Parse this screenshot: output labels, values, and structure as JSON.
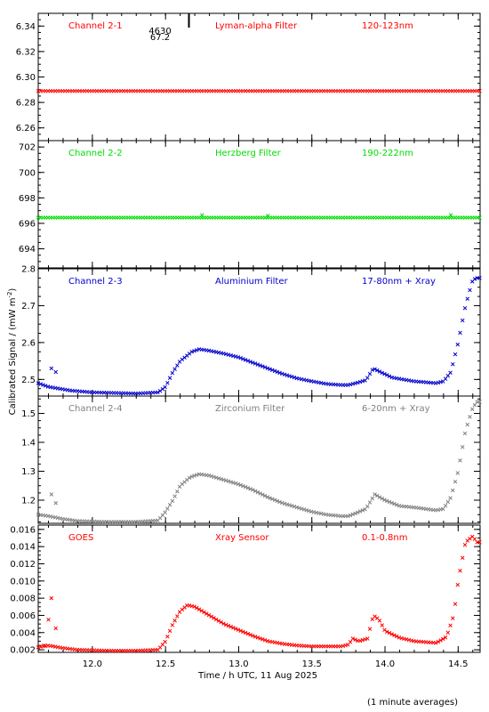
{
  "figure": {
    "ylabel_prefix": "Calibrated Signal / (mW m",
    "ylabel_sup": "-2",
    "ylabel_suffix": ")",
    "xlabel": "Time / h UTC, 11 Aug 2025",
    "footnote": "(1 minute averages)",
    "top_annotation": [
      "4630",
      "67.2"
    ]
  },
  "chart_data": [
    {
      "type": "scatter",
      "channel": "Channel 2-1",
      "filter": "Lyman-alpha Filter",
      "band": "120-123nm",
      "color": "#ff0000",
      "ylim": [
        6.25,
        6.35
      ],
      "yticks": [
        6.26,
        6.28,
        6.3,
        6.32,
        6.34
      ],
      "ytick_labels": [
        "6.26",
        "6.28",
        "6.30",
        "6.32",
        "6.34"
      ],
      "profile": [
        [
          11.63,
          6.289
        ],
        [
          14.63,
          6.289
        ]
      ],
      "bumps": []
    },
    {
      "type": "scatter",
      "channel": "Channel 2-2",
      "filter": "Herzberg Filter",
      "band": "190-222nm",
      "color": "#00dd00",
      "ylim": [
        692.5,
        702.5
      ],
      "yticks": [
        694,
        696,
        698,
        700,
        702
      ],
      "ytick_labels": [
        "694",
        "696",
        "698",
        "700",
        "702"
      ],
      "profile": [
        [
          11.63,
          696.45
        ],
        [
          14.63,
          696.45
        ]
      ],
      "bumps": [
        [
          12.75,
          696.65
        ],
        [
          13.2,
          696.6
        ],
        [
          14.45,
          696.65
        ]
      ]
    },
    {
      "type": "scatter",
      "channel": "Channel 2-3",
      "filter": "Aluminium Filter",
      "band": "17-80nm + Xray",
      "color": "#0000cc",
      "ylim": [
        2.455,
        2.8
      ],
      "yticks": [
        2.5,
        2.6,
        2.7,
        2.8
      ],
      "ytick_labels": [
        "2.5",
        "2.6",
        "2.7",
        "2.8"
      ],
      "profile": [
        [
          11.63,
          2.49
        ],
        [
          11.7,
          2.48
        ],
        [
          11.85,
          2.47
        ],
        [
          12.0,
          2.465
        ],
        [
          12.3,
          2.462
        ],
        [
          12.45,
          2.465
        ],
        [
          12.5,
          2.48
        ],
        [
          12.55,
          2.52
        ],
        [
          12.6,
          2.55
        ],
        [
          12.68,
          2.575
        ],
        [
          12.73,
          2.582
        ],
        [
          12.8,
          2.578
        ],
        [
          12.9,
          2.57
        ],
        [
          13.0,
          2.56
        ],
        [
          13.1,
          2.545
        ],
        [
          13.2,
          2.53
        ],
        [
          13.3,
          2.515
        ],
        [
          13.4,
          2.503
        ],
        [
          13.5,
          2.495
        ],
        [
          13.6,
          2.488
        ],
        [
          13.7,
          2.485
        ],
        [
          13.75,
          2.485
        ],
        [
          13.8,
          2.49
        ],
        [
          13.87,
          2.498
        ],
        [
          13.92,
          2.53
        ],
        [
          13.97,
          2.52
        ],
        [
          14.05,
          2.505
        ],
        [
          14.2,
          2.495
        ],
        [
          14.35,
          2.49
        ],
        [
          14.4,
          2.495
        ],
        [
          14.45,
          2.52
        ],
        [
          14.5,
          2.6
        ],
        [
          14.55,
          2.7
        ],
        [
          14.6,
          2.77
        ],
        [
          14.63,
          2.775
        ]
      ],
      "bumps": [
        [
          11.72,
          2.53
        ],
        [
          11.75,
          2.52
        ]
      ]
    },
    {
      "type": "scatter",
      "channel": "Channel 2-4",
      "filter": "Zirconium Filter",
      "band": "6-20nm + Xray",
      "color": "#808080",
      "ylim": [
        1.12,
        1.56
      ],
      "yticks": [
        1.2,
        1.3,
        1.4,
        1.5
      ],
      "ytick_labels": [
        "1.2",
        "1.3",
        "1.4",
        "1.5"
      ],
      "profile": [
        [
          11.63,
          1.15
        ],
        [
          11.7,
          1.145
        ],
        [
          11.8,
          1.135
        ],
        [
          11.9,
          1.128
        ],
        [
          12.1,
          1.125
        ],
        [
          12.3,
          1.125
        ],
        [
          12.45,
          1.13
        ],
        [
          12.5,
          1.16
        ],
        [
          12.55,
          1.2
        ],
        [
          12.6,
          1.25
        ],
        [
          12.67,
          1.28
        ],
        [
          12.73,
          1.29
        ],
        [
          12.8,
          1.285
        ],
        [
          12.9,
          1.27
        ],
        [
          13.0,
          1.255
        ],
        [
          13.1,
          1.235
        ],
        [
          13.2,
          1.21
        ],
        [
          13.3,
          1.19
        ],
        [
          13.4,
          1.175
        ],
        [
          13.5,
          1.16
        ],
        [
          13.6,
          1.15
        ],
        [
          13.7,
          1.145
        ],
        [
          13.75,
          1.145
        ],
        [
          13.8,
          1.155
        ],
        [
          13.87,
          1.17
        ],
        [
          13.93,
          1.22
        ],
        [
          14.0,
          1.2
        ],
        [
          14.1,
          1.18
        ],
        [
          14.2,
          1.175
        ],
        [
          14.35,
          1.165
        ],
        [
          14.4,
          1.17
        ],
        [
          14.45,
          1.21
        ],
        [
          14.5,
          1.3
        ],
        [
          14.55,
          1.44
        ],
        [
          14.6,
          1.52
        ],
        [
          14.63,
          1.54
        ]
      ],
      "bumps": [
        [
          11.72,
          1.22
        ],
        [
          11.75,
          1.19
        ]
      ]
    },
    {
      "type": "scatter",
      "channel": "GOES",
      "filter": "Xray Sensor",
      "band": "0.1-0.8nm",
      "color": "#ff0000",
      "ylim": [
        0.0017,
        0.0165
      ],
      "yticks": [
        0.002,
        0.004,
        0.006,
        0.008,
        0.01,
        0.012,
        0.014,
        0.016
      ],
      "ytick_labels": [
        "0.002",
        "0.004",
        "0.006",
        "0.008",
        "0.010",
        "0.012",
        "0.014",
        "0.016"
      ],
      "profile": [
        [
          11.63,
          0.0023
        ],
        [
          11.7,
          0.0025
        ],
        [
          11.8,
          0.0022
        ],
        [
          11.9,
          0.002
        ],
        [
          12.1,
          0.0019
        ],
        [
          12.3,
          0.0019
        ],
        [
          12.45,
          0.002
        ],
        [
          12.5,
          0.003
        ],
        [
          12.55,
          0.005
        ],
        [
          12.6,
          0.0065
        ],
        [
          12.65,
          0.0072
        ],
        [
          12.7,
          0.007
        ],
        [
          12.8,
          0.006
        ],
        [
          12.9,
          0.005
        ],
        [
          13.0,
          0.0043
        ],
        [
          13.1,
          0.0036
        ],
        [
          13.2,
          0.003
        ],
        [
          13.3,
          0.0027
        ],
        [
          13.4,
          0.0025
        ],
        [
          13.5,
          0.0024
        ],
        [
          13.6,
          0.0024
        ],
        [
          13.7,
          0.0024
        ],
        [
          13.75,
          0.0026
        ],
        [
          13.78,
          0.0033
        ],
        [
          13.82,
          0.003
        ],
        [
          13.88,
          0.0033
        ],
        [
          13.92,
          0.006
        ],
        [
          13.96,
          0.0055
        ],
        [
          14.0,
          0.0042
        ],
        [
          14.1,
          0.0034
        ],
        [
          14.2,
          0.003
        ],
        [
          14.35,
          0.0028
        ],
        [
          14.42,
          0.0035
        ],
        [
          14.47,
          0.006
        ],
        [
          14.5,
          0.01
        ],
        [
          14.55,
          0.0145
        ],
        [
          14.6,
          0.0152
        ],
        [
          14.63,
          0.0145
        ]
      ],
      "bumps": [
        [
          11.67,
          0.0025
        ],
        [
          11.7,
          0.0055
        ],
        [
          11.72,
          0.008
        ],
        [
          11.75,
          0.0045
        ]
      ]
    }
  ],
  "x_axis": {
    "xlim": [
      11.63,
      14.65
    ],
    "xticks": [
      12.0,
      12.5,
      13.0,
      13.5,
      14.0,
      14.5
    ],
    "xtick_labels": [
      "12.0",
      "12.5",
      "13.0",
      "13.5",
      "14.0",
      "14.5"
    ],
    "minor_step": 0.1
  },
  "marker_time": 12.66
}
